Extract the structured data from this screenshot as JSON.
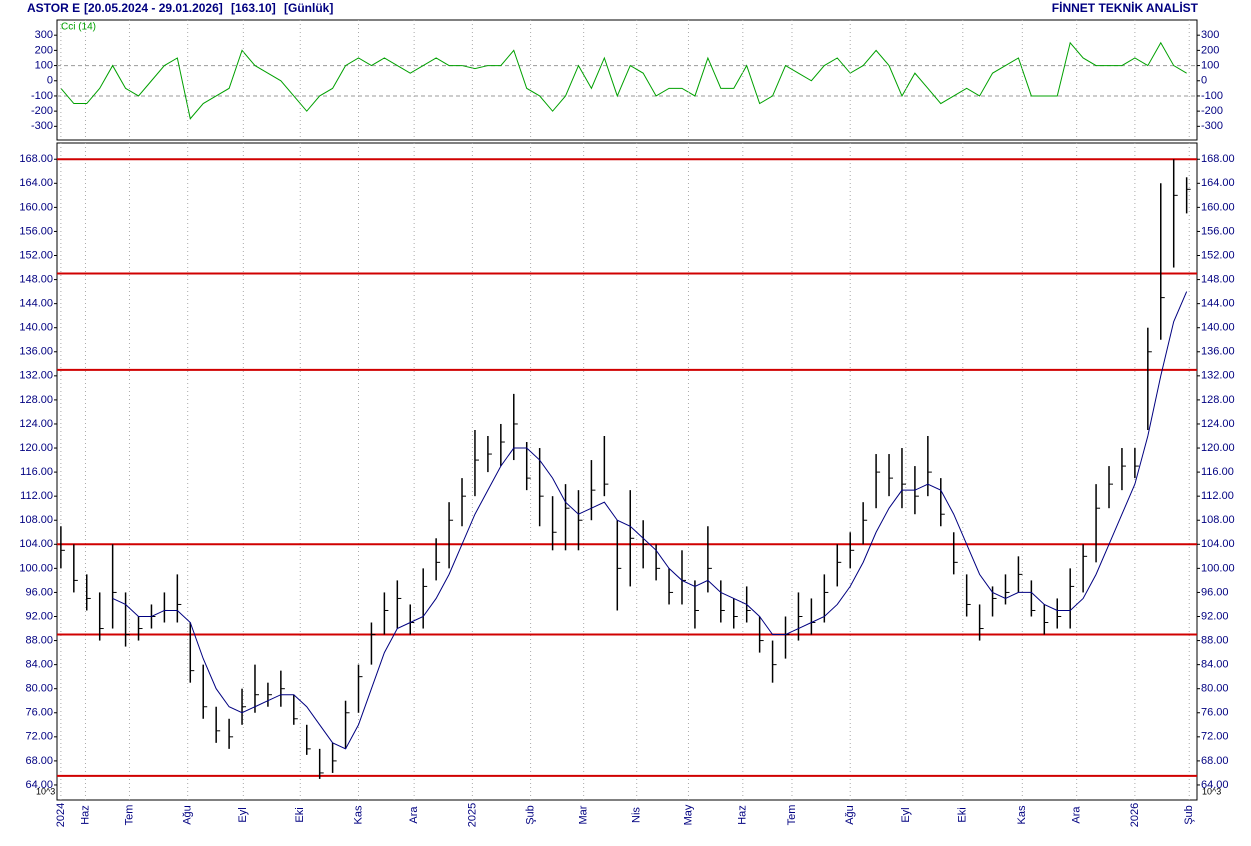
{
  "chart_data": [
    {
      "type": "cci",
      "label": "Cci (14)",
      "color": "#00a000",
      "ylim": [
        -390,
        400
      ],
      "yticks": [
        300,
        200,
        100,
        0,
        -100,
        -200,
        -300
      ],
      "levels": [
        100,
        -100
      ],
      "xlim": [
        -0.3,
        87.8
      ],
      "values": [
        -50,
        -150,
        -150,
        -50,
        100,
        -50,
        -100,
        0,
        100,
        150,
        -250,
        -150,
        -100,
        -50,
        200,
        100,
        50,
        0,
        -100,
        -200,
        -100,
        -50,
        100,
        150,
        100,
        150,
        100,
        50,
        100,
        150,
        100,
        100,
        80,
        100,
        100,
        200,
        -50,
        -100,
        -200,
        -100,
        100,
        -50,
        150,
        -100,
        100,
        50,
        -100,
        -50,
        -50,
        -100,
        150,
        -50,
        -50,
        100,
        -150,
        -100,
        100,
        50,
        0,
        100,
        150,
        50,
        100,
        200,
        100,
        -100,
        50,
        -50,
        -150,
        -100,
        -50,
        -100,
        50,
        100,
        150,
        -100,
        -100,
        -100,
        250,
        150,
        100,
        100,
        100,
        150,
        100,
        250,
        100,
        50
      ]
    },
    {
      "type": "ohlc",
      "title": "ASTOR E",
      "period": "[20.05.2024 - 29.01.2026]",
      "last": "[163.10]",
      "interval": "[Günlük]",
      "source": "FİNNET TEKNİK ANALİST",
      "scale_note": "10^3",
      "bar_color": "#000000",
      "ma_color": "#000080",
      "level_color": "#d00000",
      "ylim": [
        61.5,
        170.7
      ],
      "xlim": [
        -0.3,
        87.8
      ],
      "yticks": [
        {
          "value": 64,
          "label": "64.00"
        },
        {
          "value": 68,
          "label": "68.00"
        },
        {
          "value": 72,
          "label": "72.00"
        },
        {
          "value": 76,
          "label": "76.00"
        },
        {
          "value": 80,
          "label": "80.00"
        },
        {
          "value": 84,
          "label": "84.00"
        },
        {
          "value": 88,
          "label": "88.00"
        },
        {
          "value": 92,
          "label": "92.00"
        },
        {
          "value": 96,
          "label": "96.00"
        },
        {
          "value": 100,
          "label": "100.00"
        },
        {
          "value": 104,
          "label": "104.00"
        },
        {
          "value": 108,
          "label": "108.00"
        },
        {
          "value": 112,
          "label": "112.00"
        },
        {
          "value": 116,
          "label": "116.00"
        },
        {
          "value": 120,
          "label": "120.00"
        },
        {
          "value": 124,
          "label": "124.00"
        },
        {
          "value": 128,
          "label": "128.00"
        },
        {
          "value": 132,
          "label": "132.00"
        },
        {
          "value": 136,
          "label": "136.00"
        },
        {
          "value": 140,
          "label": "140.00"
        },
        {
          "value": 144,
          "label": "144.00"
        },
        {
          "value": 148,
          "label": "148.00"
        },
        {
          "value": 152,
          "label": "152.00"
        },
        {
          "value": 156,
          "label": "156.00"
        },
        {
          "value": 160,
          "label": "160.00"
        },
        {
          "value": 164,
          "label": "164.00"
        },
        {
          "value": 168,
          "label": "168.00"
        }
      ],
      "xticks": [
        {
          "value": 0,
          "label": "2024"
        },
        {
          "value": 1.9,
          "label": "Haz"
        },
        {
          "value": 5.3,
          "label": "Tem"
        },
        {
          "value": 9.8,
          "label": "Ağu"
        },
        {
          "value": 14.1,
          "label": "Eyl"
        },
        {
          "value": 18.5,
          "label": "Eki"
        },
        {
          "value": 23,
          "label": "Kas"
        },
        {
          "value": 27.3,
          "label": "Ara"
        },
        {
          "value": 31.8,
          "label": "2025"
        },
        {
          "value": 36.3,
          "label": "Şub"
        },
        {
          "value": 40.4,
          "label": "Mar"
        },
        {
          "value": 44.5,
          "label": "Nis"
        },
        {
          "value": 48.5,
          "label": "May"
        },
        {
          "value": 52.7,
          "label": "Haz"
        },
        {
          "value": 56.5,
          "label": "Tem"
        },
        {
          "value": 61,
          "label": "Ağu"
        },
        {
          "value": 65.3,
          "label": "Eyl"
        },
        {
          "value": 69.7,
          "label": "Eki"
        },
        {
          "value": 74.3,
          "label": "Kas"
        },
        {
          "value": 78.5,
          "label": "Ara"
        },
        {
          "value": 83,
          "label": "2026"
        },
        {
          "value": 87.2,
          "label": "Şub"
        }
      ],
      "levels": [
        168,
        149,
        133,
        104,
        89,
        65.5
      ],
      "high": [
        107,
        104,
        99,
        96,
        104,
        96,
        92,
        94,
        96,
        99,
        91,
        84,
        77,
        75,
        80,
        84,
        81,
        83,
        79,
        74,
        70,
        71,
        78,
        84,
        91,
        96,
        98,
        94,
        100,
        105,
        111,
        115,
        123,
        122,
        124,
        129,
        121,
        120,
        112,
        114,
        113,
        118,
        122,
        108,
        113,
        108,
        104,
        100,
        103,
        98,
        107,
        98,
        95,
        97,
        92,
        88,
        92,
        96,
        95,
        99,
        104,
        106,
        111,
        119,
        119,
        120,
        117,
        122,
        115,
        106,
        99,
        94,
        97,
        99,
        102,
        98,
        94,
        95,
        100,
        104,
        114,
        117,
        120,
        120,
        140,
        164,
        168,
        165
      ],
      "low": [
        100,
        96,
        93,
        88,
        90,
        87,
        88,
        90,
        91,
        91,
        81,
        75,
        71,
        70,
        74,
        76,
        77,
        77,
        74,
        69,
        65,
        66,
        70,
        76,
        84,
        89,
        90,
        89,
        90,
        98,
        100,
        107,
        112,
        116,
        117,
        118,
        113,
        107,
        103,
        103,
        103,
        108,
        112,
        93,
        97,
        100,
        98,
        94,
        94,
        90,
        96,
        91,
        90,
        91,
        86,
        81,
        85,
        88,
        89,
        91,
        97,
        100,
        104,
        110,
        112,
        110,
        109,
        112,
        107,
        99,
        92,
        88,
        92,
        94,
        96,
        92,
        89,
        90,
        90,
        96,
        101,
        110,
        113,
        115,
        123,
        138,
        150,
        159
      ],
      "close": [
        103,
        98,
        95,
        90,
        96,
        89,
        90,
        92,
        93,
        94,
        83,
        77,
        73,
        72,
        77,
        79,
        79,
        80,
        75,
        70,
        66,
        68,
        76,
        82,
        89,
        93,
        95,
        91,
        97,
        101,
        108,
        112,
        118,
        119,
        121,
        124,
        115,
        112,
        106,
        110,
        108,
        113,
        114,
        100,
        105,
        104,
        100,
        96,
        98,
        93,
        100,
        93,
        92,
        93,
        88,
        84,
        89,
        92,
        91,
        96,
        101,
        103,
        108,
        116,
        115,
        114,
        112,
        116,
        109,
        101,
        94,
        90,
        95,
        96,
        99,
        93,
        91,
        92,
        97,
        102,
        110,
        114,
        117,
        117,
        136,
        145,
        162,
        163
      ],
      "ma": [
        null,
        null,
        null,
        null,
        95,
        94,
        92,
        92,
        93,
        93,
        91,
        85,
        80,
        77,
        76,
        77,
        78,
        79,
        79,
        77,
        74,
        71,
        70,
        74,
        80,
        86,
        90,
        91,
        92,
        95,
        99,
        104,
        109,
        113,
        117,
        120,
        120,
        118,
        115,
        111,
        109,
        110,
        111,
        108,
        107,
        105,
        103,
        100,
        98,
        97,
        98,
        96,
        95,
        94,
        92,
        89,
        89,
        90,
        91,
        92,
        94,
        97,
        101,
        106,
        110,
        113,
        113,
        114,
        113,
        109,
        104,
        99,
        96,
        95,
        96,
        96,
        94,
        93,
        93,
        95,
        99,
        104,
        109,
        114,
        122,
        132,
        141,
        146
      ]
    }
  ]
}
